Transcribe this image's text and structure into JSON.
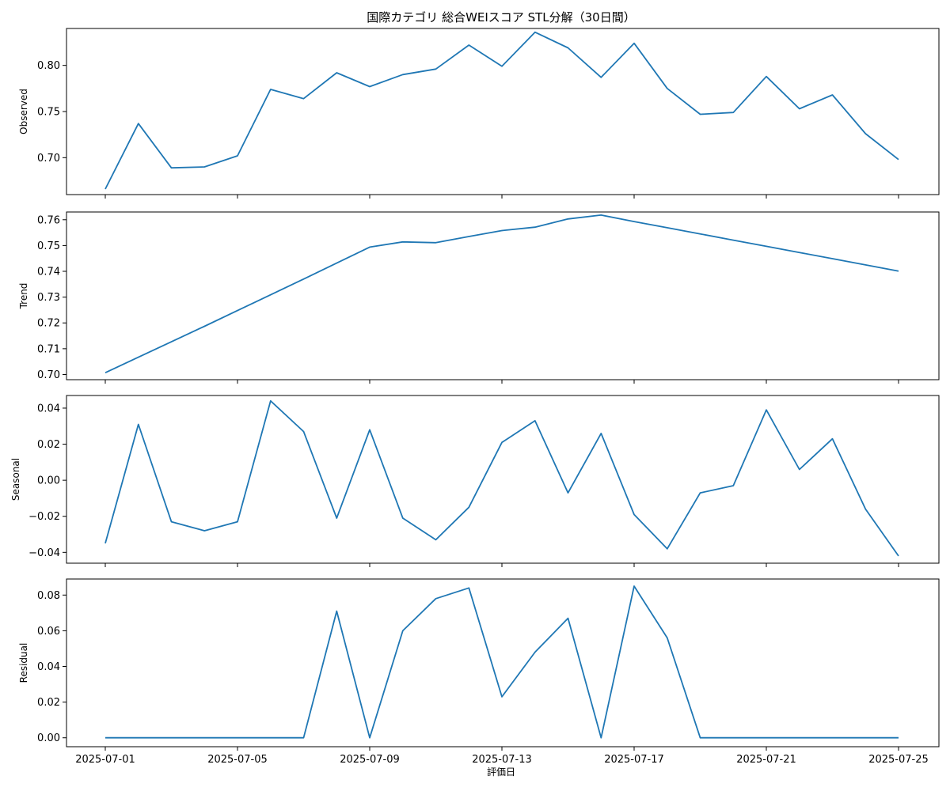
{
  "chart_data": {
    "type": "line",
    "title": "国際カテゴリ 総合WEIスコア STL分解（30日間）",
    "xlabel": "評価日",
    "x": [
      "2025-07-01",
      "2025-07-02",
      "2025-07-03",
      "2025-07-04",
      "2025-07-05",
      "2025-07-06",
      "2025-07-07",
      "2025-07-08",
      "2025-07-09",
      "2025-07-10",
      "2025-07-11",
      "2025-07-12",
      "2025-07-13",
      "2025-07-14",
      "2025-07-15",
      "2025-07-16",
      "2025-07-17",
      "2025-07-18",
      "2025-07-19",
      "2025-07-20",
      "2025-07-21",
      "2025-07-22",
      "2025-07-23",
      "2025-07-24",
      "2025-07-25"
    ],
    "x_tick_labels": [
      "2025-07-01",
      "2025-07-05",
      "2025-07-09",
      "2025-07-13",
      "2025-07-17",
      "2025-07-21",
      "2025-07-25"
    ],
    "panels": [
      {
        "name": "observed",
        "ylabel": "Observed",
        "ylim": [
          0.66,
          0.84
        ],
        "yticks": [
          0.7,
          0.75,
          0.8
        ],
        "ytick_labels": [
          "0.70",
          "0.75",
          "0.80"
        ],
        "values": [
          0.666,
          0.737,
          0.689,
          0.69,
          0.702,
          0.774,
          0.764,
          0.792,
          0.777,
          0.79,
          0.796,
          0.822,
          0.799,
          0.836,
          0.819,
          0.787,
          0.824,
          0.775,
          0.747,
          0.749,
          0.788,
          0.753,
          0.768,
          0.726,
          0.698
        ]
      },
      {
        "name": "trend",
        "ylabel": "Trend",
        "ylim": [
          0.698,
          0.763
        ],
        "yticks": [
          0.7,
          0.71,
          0.72,
          0.73,
          0.74,
          0.75,
          0.76
        ],
        "ytick_labels": [
          "0.70",
          "0.71",
          "0.72",
          "0.73",
          "0.74",
          "0.75",
          "0.76"
        ],
        "values": [
          0.7007,
          0.7067,
          0.7127,
          0.7187,
          0.7248,
          0.7309,
          0.737,
          0.7432,
          0.7494,
          0.7514,
          0.7511,
          0.7535,
          0.7558,
          0.7571,
          0.7603,
          0.7618,
          0.7593,
          0.7569,
          0.7545,
          0.7521,
          0.7497,
          0.7473,
          0.7449,
          0.7425,
          0.7401
        ]
      },
      {
        "name": "seasonal",
        "ylabel": "Seasonal",
        "ylim": [
          -0.046,
          0.047
        ],
        "yticks": [
          -0.04,
          -0.02,
          0.0,
          0.02,
          0.04
        ],
        "ytick_labels": [
          "−0.04",
          "−0.02",
          "0.00",
          "0.02",
          "0.04"
        ],
        "values": [
          -0.035,
          0.031,
          -0.023,
          -0.028,
          -0.023,
          0.044,
          0.027,
          -0.021,
          0.028,
          -0.021,
          -0.033,
          -0.015,
          0.021,
          0.033,
          -0.007,
          0.026,
          -0.019,
          -0.038,
          -0.007,
          -0.003,
          0.039,
          0.006,
          0.023,
          -0.016,
          -0.042
        ]
      },
      {
        "name": "residual",
        "ylabel": "Residual",
        "ylim": [
          -0.005,
          0.089
        ],
        "yticks": [
          0.0,
          0.02,
          0.04,
          0.06,
          0.08
        ],
        "ytick_labels": [
          "0.00",
          "0.02",
          "0.04",
          "0.06",
          "0.08"
        ],
        "values": [
          0.0,
          0.0,
          0.0,
          0.0,
          0.0,
          0.0,
          0.0,
          0.071,
          0.0,
          0.06,
          0.078,
          0.084,
          0.023,
          0.048,
          0.067,
          0.0,
          0.085,
          0.056,
          0.0,
          0.0,
          0.0,
          0.0,
          0.0,
          0.0,
          0.0
        ]
      }
    ],
    "line_color": "#1f77b4",
    "grid": false,
    "legend": "none"
  }
}
